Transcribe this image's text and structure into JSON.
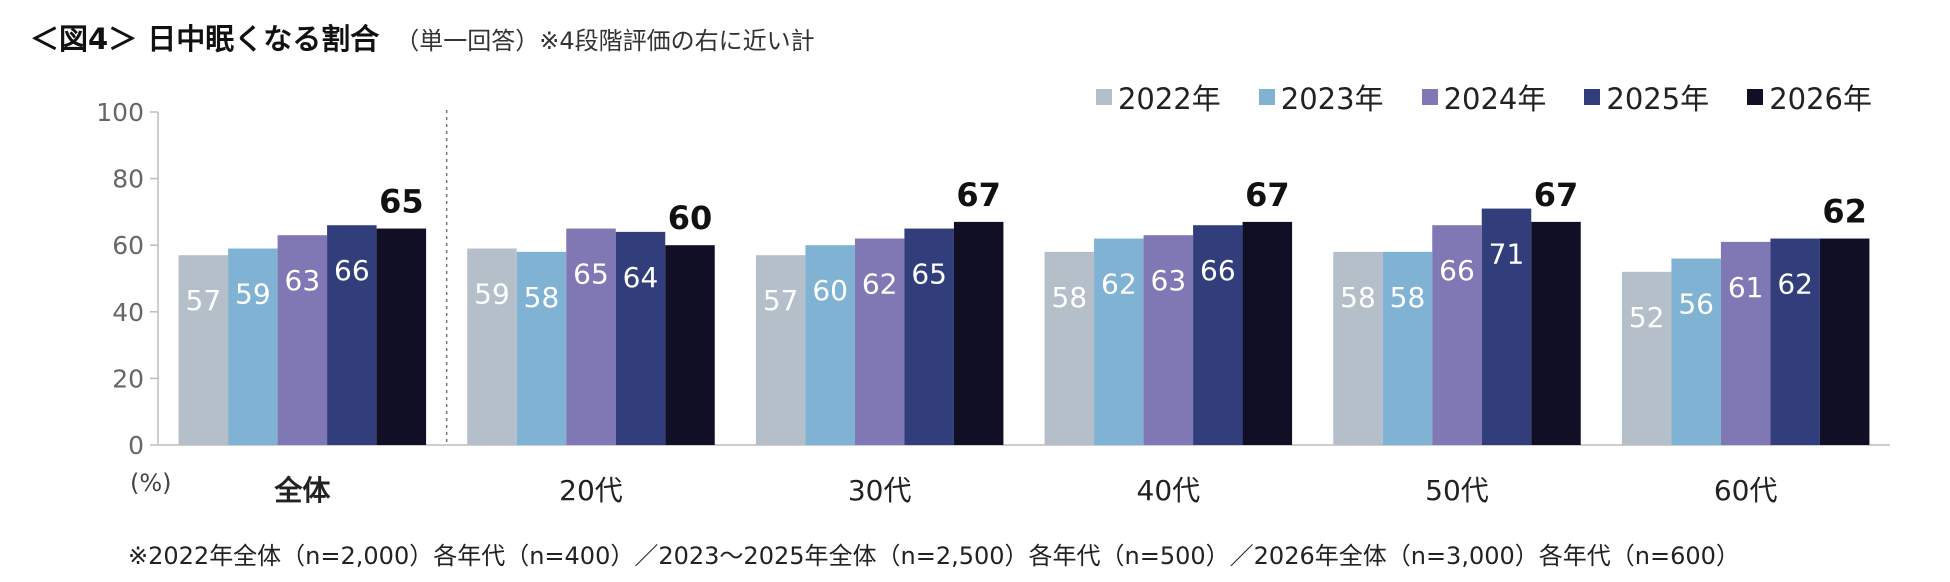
{
  "title": {
    "main": "＜図4＞ 日中眠くなる割合",
    "sub": "（単一回答）※4段階評価の右に近い計"
  },
  "footnote": "※2022年全体（n=2,000）各年代（n=400）／2023～2025年全体（n=2,500）各年代（n=500）／2026年全体（n=3,000）各年代（n=600）",
  "chart_data": {
    "type": "bar",
    "title": "日中眠くなる割合",
    "ylabel": "(%)",
    "xlabel": "",
    "ylim": [
      0,
      100
    ],
    "yticks": [
      "0",
      "20",
      "40",
      "60",
      "80",
      "100"
    ],
    "legend_position": "top-right",
    "categories": [
      "全体",
      "20代",
      "30代",
      "40代",
      "50代",
      "60代"
    ],
    "series": [
      {
        "name": "2022年",
        "color": "#b4bfca",
        "values": [
          57,
          59,
          57,
          58,
          58,
          52
        ]
      },
      {
        "name": "2023年",
        "color": "#80b2d3",
        "values": [
          59,
          58,
          60,
          62,
          58,
          56
        ]
      },
      {
        "name": "2024年",
        "color": "#8077b5",
        "values": [
          63,
          65,
          62,
          63,
          66,
          61
        ]
      },
      {
        "name": "2025年",
        "color": "#323e7b",
        "values": [
          66,
          64,
          65,
          66,
          71,
          62
        ]
      },
      {
        "name": "2026年",
        "color": "#100f26",
        "values": [
          65,
          60,
          67,
          67,
          67,
          62
        ]
      }
    ]
  }
}
